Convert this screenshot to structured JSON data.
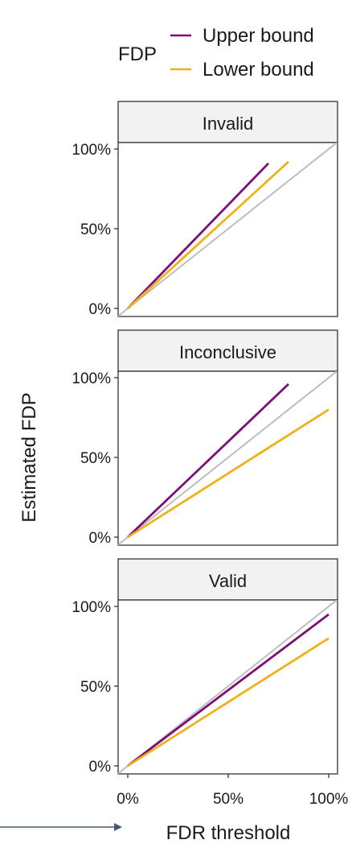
{
  "legend": {
    "title": "FDP",
    "entries": [
      {
        "label": "Upper bound",
        "color": "#7b0f78"
      },
      {
        "label": "Lower bound",
        "color": "#f0b21a"
      }
    ]
  },
  "chart_data": {
    "type": "line",
    "xlabel": "FDR threshold",
    "ylabel": "Estimated FDP",
    "xlim": [
      0,
      1
    ],
    "ylim": [
      0,
      1
    ],
    "x_ticks": [
      "0%",
      "50%",
      "100%"
    ],
    "y_ticks": [
      "0%",
      "50%",
      "100%"
    ],
    "reference_line": {
      "color": "#bdbdbd",
      "x": [
        0,
        1.05
      ],
      "y": [
        0,
        1.05
      ]
    },
    "grid": false,
    "legend_position": "top-right",
    "panels": [
      {
        "title": "Invalid",
        "series": [
          {
            "name": "Upper bound",
            "color": "#7b0f78",
            "x": [
              0,
              0.7
            ],
            "y": [
              0,
              0.91
            ]
          },
          {
            "name": "Lower bound",
            "color": "#f0b21a",
            "x": [
              0,
              0.8
            ],
            "y": [
              0,
              0.92
            ]
          }
        ]
      },
      {
        "title": "Inconclusive",
        "series": [
          {
            "name": "Upper bound",
            "color": "#7b0f78",
            "x": [
              0,
              0.8
            ],
            "y": [
              0,
              0.96
            ]
          },
          {
            "name": "Lower bound",
            "color": "#f0b21a",
            "x": [
              0,
              1.0
            ],
            "y": [
              0,
              0.8
            ]
          }
        ]
      },
      {
        "title": "Valid",
        "series": [
          {
            "name": "Upper bound",
            "color": "#7b0f78",
            "x": [
              0,
              1.0
            ],
            "y": [
              0,
              0.95
            ]
          },
          {
            "name": "Lower bound",
            "color": "#f0b21a",
            "x": [
              0,
              1.0
            ],
            "y": [
              0,
              0.8
            ]
          }
        ]
      }
    ]
  }
}
